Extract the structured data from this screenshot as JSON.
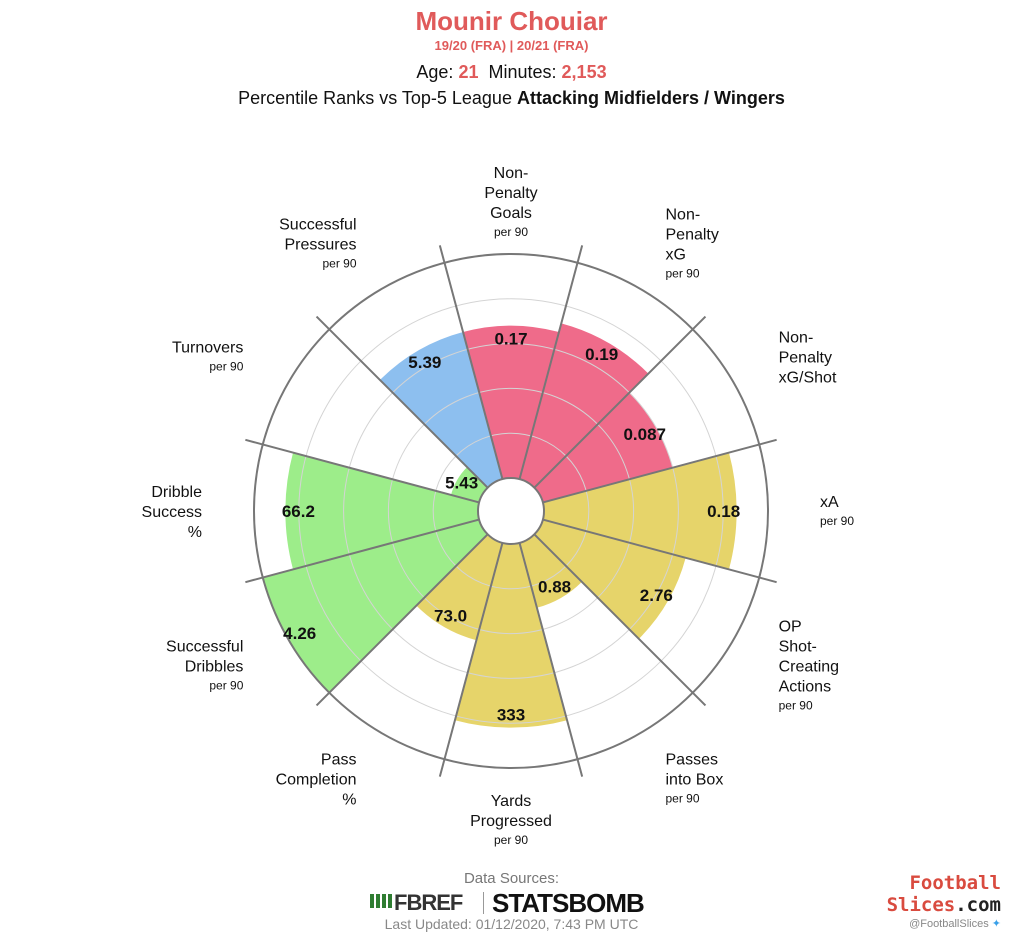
{
  "header": {
    "player": "Mounir Chouiar",
    "seasons": "19/20 (FRA)  |  20/21 (FRA)",
    "age_label": "Age:",
    "age": "21",
    "minutes_label": "Minutes:",
    "minutes": "2,153",
    "subtitle_prefix": "Percentile Ranks vs Top-5 League ",
    "subtitle_bold": "Attacking Midfielders / Wingers"
  },
  "footer": {
    "sources": "Data Sources:",
    "fbref": "FBREF",
    "statsbomb": "STATSBOMB",
    "updated": "Last Updated: 01/12/2020, 7:43 PM UTC",
    "brand_line1": "Football",
    "brand_line2a": "Slices",
    "brand_line2b": ".com",
    "handle": "@FootballSlices"
  },
  "chart_data": {
    "type": "polar-bar",
    "scale": "percentile",
    "rlim": [
      0,
      100
    ],
    "grid": true,
    "colors": {
      "attacking": "#ef6b8a",
      "possession": "#e6d46a",
      "progression": "#9ded8a",
      "defending": "#8dbfef"
    },
    "categories": [
      {
        "label": [
          "Non-",
          "Penalty",
          "Goals"
        ],
        "unit": "per 90",
        "value": "0.17",
        "group": "attacking",
        "percentile": 68
      },
      {
        "label": [
          "Non-",
          "Penalty",
          "xG"
        ],
        "unit": "per 90",
        "value": "0.19",
        "group": "attacking",
        "percentile": 72
      },
      {
        "label": [
          "Non-",
          "Penalty",
          "xG/Shot"
        ],
        "unit": "",
        "value": "0.087",
        "group": "attacking",
        "percentile": 60
      },
      {
        "label": [
          "xA"
        ],
        "unit": "per 90",
        "value": "0.18",
        "group": "possession",
        "percentile": 86
      },
      {
        "label": [
          "OP",
          "Shot-",
          "Creating",
          "Actions"
        ],
        "unit": "per 90",
        "value": "2.76",
        "group": "possession",
        "percentile": 66
      },
      {
        "label": [
          "Passes",
          "into Box"
        ],
        "unit": "per 90",
        "value": "0.88",
        "group": "possession",
        "percentile": 30
      },
      {
        "label": [
          "Yards",
          "Progressed"
        ],
        "unit": "per 90",
        "value": "333",
        "group": "possession",
        "percentile": 82
      },
      {
        "label": [
          "Pass",
          "Completion",
          "%"
        ],
        "unit": "",
        "value": "73.0",
        "group": "possession",
        "percentile": 45
      },
      {
        "label": [
          "Successful",
          "Dribbles"
        ],
        "unit": "per 90",
        "value": "4.26",
        "group": "progression",
        "percentile": 100
      },
      {
        "label": [
          "Dribble",
          "Success",
          "%"
        ],
        "unit": "",
        "value": "66.2",
        "group": "progression",
        "percentile": 86
      },
      {
        "label": [
          "Turnovers"
        ],
        "unit": "per 90",
        "value": "5.43",
        "group": "progression",
        "percentile": 13
      },
      {
        "label": [
          "Successful",
          "Pressures"
        ],
        "unit": "per 90",
        "value": "5.39",
        "group": "defending",
        "percentile": 68
      }
    ]
  }
}
